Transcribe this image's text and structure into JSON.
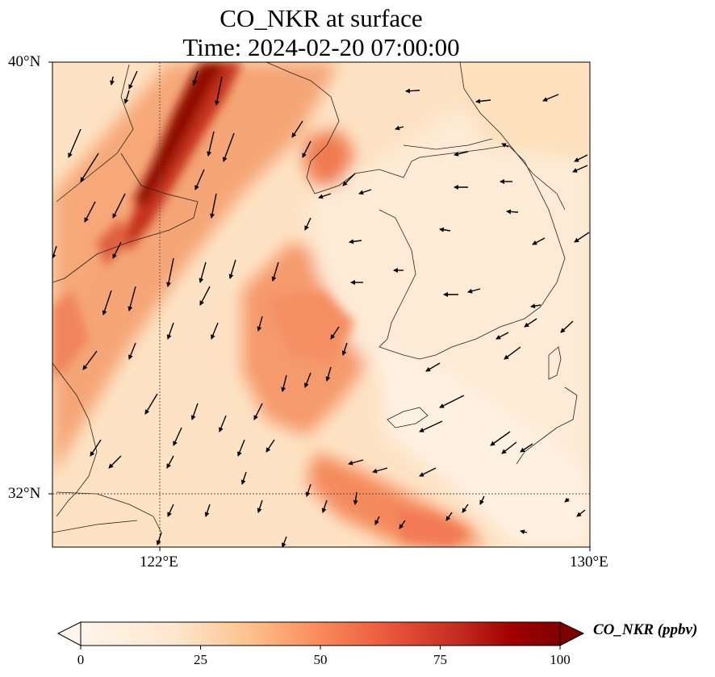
{
  "map": {
    "title_line1": "CO_NKR at surface",
    "title_line2": "Time: 2024-02-20 07:00:00",
    "lat_labels": [
      "40°N",
      "32°N"
    ],
    "lon_labels": [
      "122°E",
      "130°E"
    ],
    "colormap": [
      "#fff5eb",
      "#fdd9b4",
      "#fda762",
      "#f16913",
      "#c53d12",
      "#8b0e04",
      "#7f0000"
    ],
    "background_color": "#fde9cf"
  },
  "colorbar": {
    "label": "CO_NKR (ppbv)",
    "ticks": [
      "0",
      "25",
      "50",
      "75",
      "100"
    ],
    "range": [
      0,
      100
    ]
  }
}
